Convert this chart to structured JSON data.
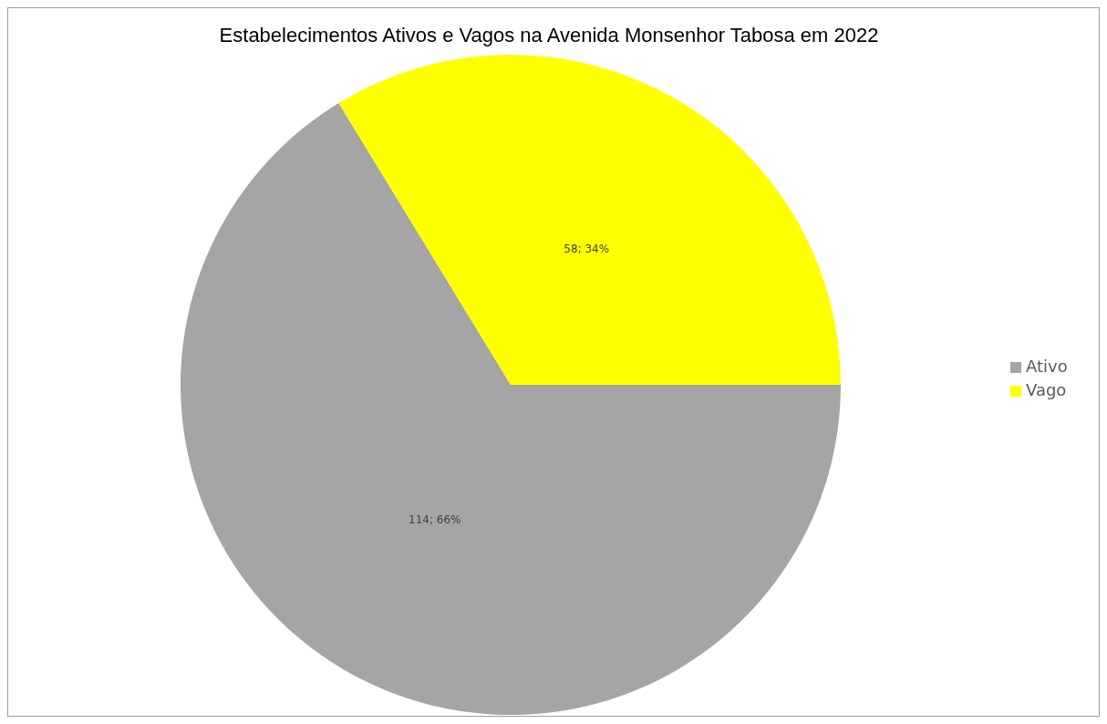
{
  "chart_data": {
    "type": "pie",
    "title": "Estabelecimentos Ativos e Vagos na Avenida Monsenhor Tabosa em 2022",
    "categories": [
      "Ativo",
      "Vago"
    ],
    "values": [
      114,
      58
    ],
    "colors": [
      "#a5a5a5",
      "#ffff00"
    ],
    "value_labels": [
      "114; 66%",
      "58; 34%"
    ],
    "legend": "right"
  }
}
